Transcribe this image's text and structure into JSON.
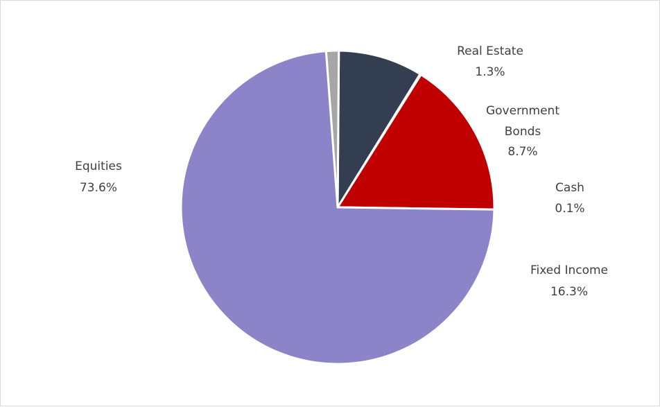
{
  "chart_data": {
    "type": "pie",
    "title": "",
    "start_angle_deg": -0.8,
    "direction": "counterclockwise",
    "slices": [
      {
        "label": "Fixed Income",
        "value": 16.3,
        "value_label": "16.3%",
        "color": "#c00000"
      },
      {
        "label": "Cash",
        "value": 0.1,
        "value_label": "0.1%",
        "color": "#8faadc"
      },
      {
        "label": "Government Bonds",
        "label_lines": [
          "Government",
          "Bonds"
        ],
        "value": 8.7,
        "value_label": "8.7%",
        "color": "#333f50"
      },
      {
        "label": "Real Estate",
        "value": 1.3,
        "value_label": "1.3%",
        "color": "#a6a6a6"
      },
      {
        "label": "Equities",
        "value": 73.6,
        "value_label": "73.6%",
        "color": "#8b84c8"
      }
    ],
    "legend": "none",
    "data_labels": "outside"
  }
}
